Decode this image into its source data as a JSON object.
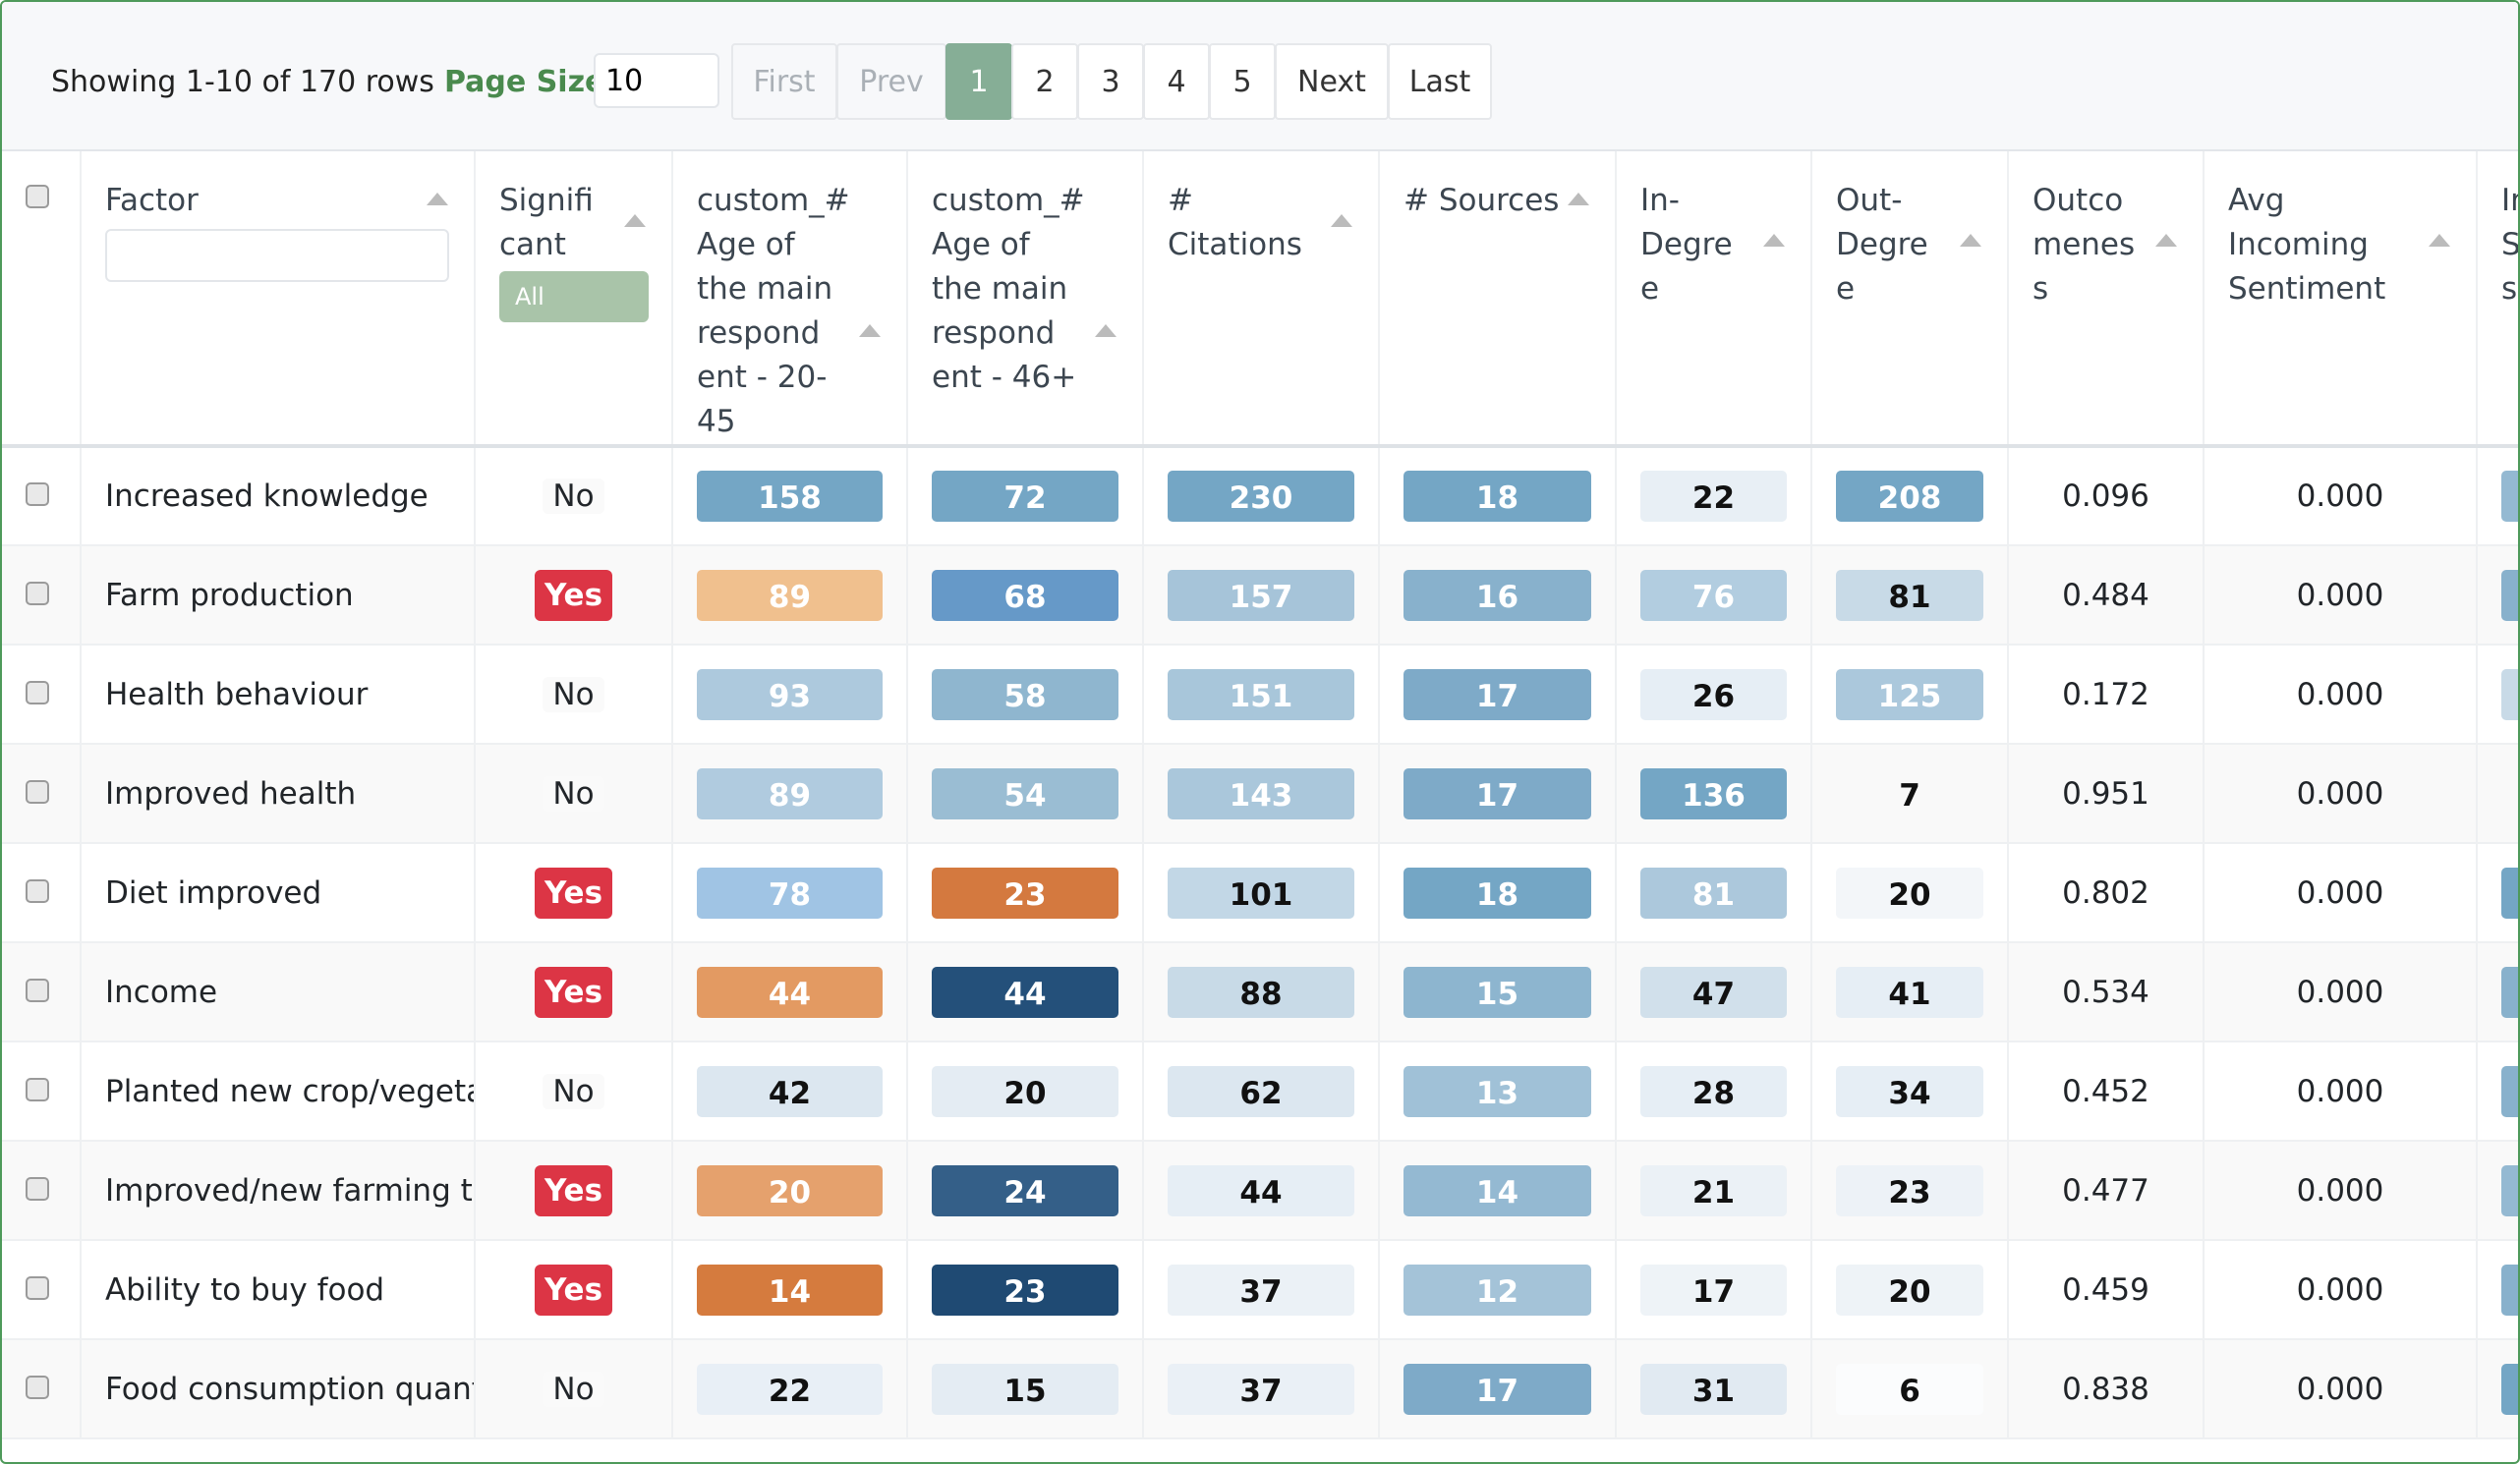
{
  "toolbar": {
    "showing": "Showing 1-10 of 170 rows",
    "page_size_label": "Page Size",
    "page_size_value": "10",
    "pages": [
      {
        "label": "First",
        "state": "disabled"
      },
      {
        "label": "Prev",
        "state": "disabled"
      },
      {
        "label": "1",
        "state": "active"
      },
      {
        "label": "2",
        "state": "normal"
      },
      {
        "label": "3",
        "state": "normal"
      },
      {
        "label": "4",
        "state": "normal"
      },
      {
        "label": "5",
        "state": "normal"
      },
      {
        "label": "Next",
        "state": "normal"
      },
      {
        "label": "Last",
        "state": "normal"
      }
    ]
  },
  "columns": {
    "factor": "Factor",
    "significant": "Signifi cant",
    "significant_filter": "All",
    "c1": "custom_# Age of the main respond ent - 20-45",
    "c2": "custom_# Age of the main respond ent - 46+",
    "citations": "# Citations",
    "sources": "# Sources",
    "in_degree": "In-Degre e",
    "out_degree": "Out-Degre e",
    "outcomeness": "Outco menes s",
    "avg_sentiment": "Avg Incoming Sentiment",
    "next": "In S s"
  },
  "colors": {
    "yes_badge": "#dc3545",
    "active_page": "#86ae96",
    "accent_green": "#4a8a4e"
  },
  "rows": [
    {
      "factor": "Increased knowledge",
      "significant": "No",
      "cells": [
        [
          158,
          "#74a6c5",
          1
        ],
        [
          72,
          "#74a6c5",
          1
        ],
        [
          230,
          "#74a6c5",
          1
        ],
        [
          18,
          "#74a6c5",
          1
        ],
        [
          22,
          "#e8eff5",
          0
        ],
        [
          208,
          "#74a6c5",
          1
        ]
      ],
      "outcomeness": "0.096",
      "sentiment": "0.000",
      "next_color": "#94b9d2"
    },
    {
      "factor": "Farm production",
      "significant": "Yes",
      "cells": [
        [
          89,
          "#f0c08e",
          1
        ],
        [
          68,
          "#6699c8",
          1
        ],
        [
          157,
          "#a6c4d9",
          1
        ],
        [
          16,
          "#88b1cc",
          1
        ],
        [
          76,
          "#b2cde0",
          1
        ],
        [
          81,
          "#c8dae7",
          0
        ]
      ],
      "outcomeness": "0.484",
      "sentiment": "0.000",
      "next_color": "#88b1cc"
    },
    {
      "factor": "Health behaviour",
      "significant": "No",
      "cells": [
        [
          93,
          "#adc9dd",
          1
        ],
        [
          58,
          "#8fb6cf",
          1
        ],
        [
          151,
          "#a8c6da",
          1
        ],
        [
          17,
          "#7eaac8",
          1
        ],
        [
          26,
          "#e6eef5",
          0
        ],
        [
          125,
          "#abc8dc",
          1
        ]
      ],
      "outcomeness": "0.172",
      "sentiment": "0.000",
      "next_color": "#c8dae7"
    },
    {
      "factor": "Improved health",
      "significant": "No",
      "cells": [
        [
          89,
          "#b0cbdf",
          1
        ],
        [
          54,
          "#9abdd3",
          1
        ],
        [
          143,
          "#aac7db",
          1
        ],
        [
          17,
          "#7eaac8",
          1
        ],
        [
          136,
          "#74a6c5",
          1
        ],
        [
          7,
          "#f9f9f9",
          0
        ]
      ],
      "outcomeness": "0.951",
      "sentiment": "0.000",
      "next_color": "#f9f9f9"
    },
    {
      "factor": "Diet improved",
      "significant": "Yes",
      "cells": [
        [
          78,
          "#a0c4e4",
          1
        ],
        [
          23,
          "#d4793f",
          1
        ],
        [
          101,
          "#c2d7e6",
          0
        ],
        [
          18,
          "#74a6c5",
          1
        ],
        [
          81,
          "#acc8dc",
          1
        ],
        [
          20,
          "#f3f6f9",
          0
        ]
      ],
      "outcomeness": "0.802",
      "sentiment": "0.000",
      "next_color": "#74a6c5"
    },
    {
      "factor": "Income",
      "significant": "Yes",
      "cells": [
        [
          44,
          "#e39a62",
          1
        ],
        [
          44,
          "#24507a",
          1
        ],
        [
          88,
          "#c8dae7",
          0
        ],
        [
          15,
          "#8db5cf",
          1
        ],
        [
          47,
          "#d1e0eb",
          0
        ],
        [
          41,
          "#e6eef5",
          0
        ]
      ],
      "outcomeness": "0.534",
      "sentiment": "0.000",
      "next_color": "#88b1cc"
    },
    {
      "factor": "Planted new crop/vegetabl",
      "significant": "No",
      "cells": [
        [
          42,
          "#dce7f0",
          0
        ],
        [
          20,
          "#e4ecf3",
          0
        ],
        [
          62,
          "#dce7f0",
          0
        ],
        [
          13,
          "#a0c1d7",
          1
        ],
        [
          28,
          "#e6eef5",
          0
        ],
        [
          34,
          "#e6eef5",
          0
        ]
      ],
      "outcomeness": "0.452",
      "sentiment": "0.000",
      "next_color": "#88b1cc"
    },
    {
      "factor": "Improved/new farming tec",
      "significant": "Yes",
      "cells": [
        [
          20,
          "#e5a16d",
          1
        ],
        [
          24,
          "#345f88",
          1
        ],
        [
          44,
          "#e6eef5",
          0
        ],
        [
          14,
          "#94b9d2",
          1
        ],
        [
          21,
          "#ebf1f6",
          0
        ],
        [
          23,
          "#edf2f7",
          0
        ]
      ],
      "outcomeness": "0.477",
      "sentiment": "0.000",
      "next_color": "#94b9d2"
    },
    {
      "factor": "Ability to buy food",
      "significant": "Yes",
      "cells": [
        [
          14,
          "#d57b3e",
          1
        ],
        [
          23,
          "#1f4a73",
          1
        ],
        [
          37,
          "#ebf1f6",
          0
        ],
        [
          12,
          "#a4c3d8",
          1
        ],
        [
          17,
          "#eef3f7",
          0
        ],
        [
          20,
          "#eef3f7",
          0
        ]
      ],
      "outcomeness": "0.459",
      "sentiment": "0.000",
      "next_color": "#88b1cc"
    },
    {
      "factor": "Food consumption quantit",
      "significant": "No",
      "cells": [
        [
          22,
          "#e8eff6",
          0
        ],
        [
          15,
          "#e4ecf3",
          0
        ],
        [
          37,
          "#eaf0f6",
          0
        ],
        [
          17,
          "#7eaac8",
          1
        ],
        [
          31,
          "#e1eaf2",
          0
        ],
        [
          6,
          "#fbfcfd",
          0
        ]
      ],
      "outcomeness": "0.838",
      "sentiment": "0.000",
      "next_color": "#74a6c5"
    }
  ]
}
